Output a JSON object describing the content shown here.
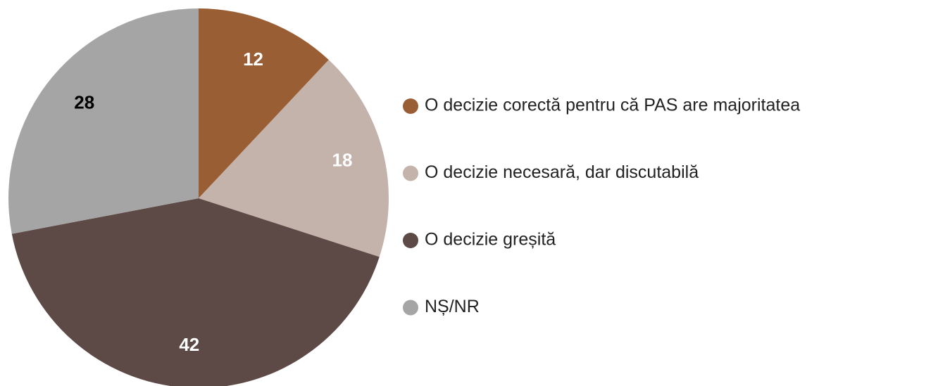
{
  "chart_data": {
    "type": "pie",
    "categories": [
      "O decizie corectă pentru că PAS are majoritatea",
      "O decizie necesară, dar discutabilă",
      "O decizie greșită",
      "NȘ/NR"
    ],
    "values": [
      12,
      18,
      42,
      28
    ],
    "colors": [
      "#9a5e35",
      "#c4b3ab",
      "#5d4a46",
      "#a5a5a5"
    ],
    "label_colors": [
      "#ffffff",
      "#ffffff",
      "#ffffff",
      "#000000"
    ],
    "legend": "right"
  }
}
